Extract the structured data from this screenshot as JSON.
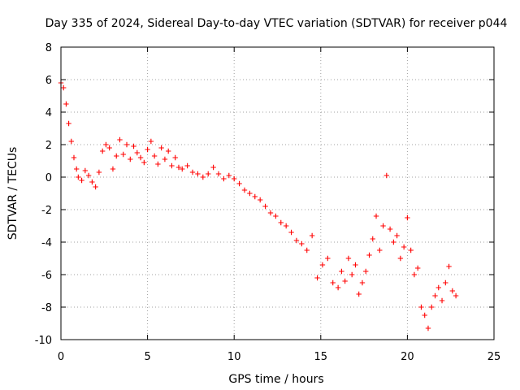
{
  "chart_data": {
    "type": "scatter",
    "title": "Day 335 of 2024, Sidereal Day-to-day VTEC variation (SDTVAR) for receiver p044",
    "xlabel": "GPS time / hours",
    "ylabel": "SDTVAR / TECUs",
    "xlim": [
      0,
      25
    ],
    "ylim": [
      -10,
      8
    ],
    "xticks": [
      0,
      5,
      10,
      15,
      20,
      25
    ],
    "yticks": [
      -10,
      -8,
      -6,
      -4,
      -2,
      0,
      2,
      4,
      6,
      8
    ],
    "grid": true,
    "marker": "plus",
    "color": "#ff0000",
    "series": [
      {
        "name": "SDTVAR",
        "x": [
          0.0,
          0.15,
          0.3,
          0.45,
          0.6,
          0.75,
          0.9,
          1.0,
          1.2,
          1.4,
          1.6,
          1.8,
          2.0,
          2.2,
          2.4,
          2.6,
          2.8,
          3.0,
          3.2,
          3.4,
          3.6,
          3.8,
          4.0,
          4.2,
          4.4,
          4.6,
          4.8,
          5.0,
          5.2,
          5.4,
          5.6,
          5.8,
          6.0,
          6.2,
          6.4,
          6.6,
          6.8,
          7.0,
          7.3,
          7.6,
          7.9,
          8.2,
          8.5,
          8.8,
          9.1,
          9.4,
          9.7,
          10.0,
          10.3,
          10.6,
          10.9,
          11.2,
          11.5,
          11.8,
          12.1,
          12.4,
          12.7,
          13.0,
          13.3,
          13.6,
          13.9,
          14.2,
          14.5,
          14.8,
          15.1,
          15.4,
          15.7,
          16.0,
          16.2,
          16.4,
          16.6,
          16.8,
          17.0,
          17.2,
          17.4,
          17.6,
          17.8,
          18.0,
          18.2,
          18.4,
          18.6,
          18.8,
          19.0,
          19.2,
          19.4,
          19.6,
          19.8,
          20.0,
          20.2,
          20.4,
          20.6,
          20.8,
          21.0,
          21.2,
          21.4,
          21.6,
          21.8,
          22.0,
          22.2,
          22.4,
          22.6,
          22.8
        ],
        "y": [
          5.8,
          5.5,
          4.5,
          3.3,
          2.2,
          1.2,
          0.5,
          0.0,
          -0.2,
          0.4,
          0.1,
          -0.3,
          -0.6,
          0.3,
          1.6,
          2.0,
          1.8,
          0.5,
          1.3,
          2.3,
          1.4,
          2.0,
          1.1,
          1.9,
          1.5,
          1.2,
          0.9,
          1.7,
          2.2,
          1.3,
          0.8,
          1.8,
          1.1,
          1.6,
          0.7,
          1.2,
          0.6,
          0.5,
          0.7,
          0.3,
          0.2,
          0.0,
          0.2,
          0.6,
          0.2,
          -0.1,
          0.1,
          -0.1,
          -0.4,
          -0.8,
          -1.0,
          -1.2,
          -1.4,
          -1.8,
          -2.2,
          -2.4,
          -2.8,
          -3.0,
          -3.4,
          -3.9,
          -4.1,
          -4.5,
          -3.6,
          -6.2,
          -5.4,
          -5.0,
          -6.5,
          -6.8,
          -5.8,
          -6.4,
          -5.0,
          -6.0,
          -5.4,
          -7.2,
          -6.5,
          -5.8,
          -4.8,
          -3.8,
          -2.4,
          -4.5,
          -3.0,
          0.1,
          -3.2,
          -4.0,
          -3.6,
          -5.0,
          -4.3,
          -2.5,
          -4.5,
          -6.0,
          -5.6,
          -8.0,
          -8.5,
          -9.3,
          -8.0,
          -7.3,
          -6.8,
          -7.6,
          -6.5,
          -5.5,
          -7.0,
          -7.3
        ]
      }
    ]
  }
}
